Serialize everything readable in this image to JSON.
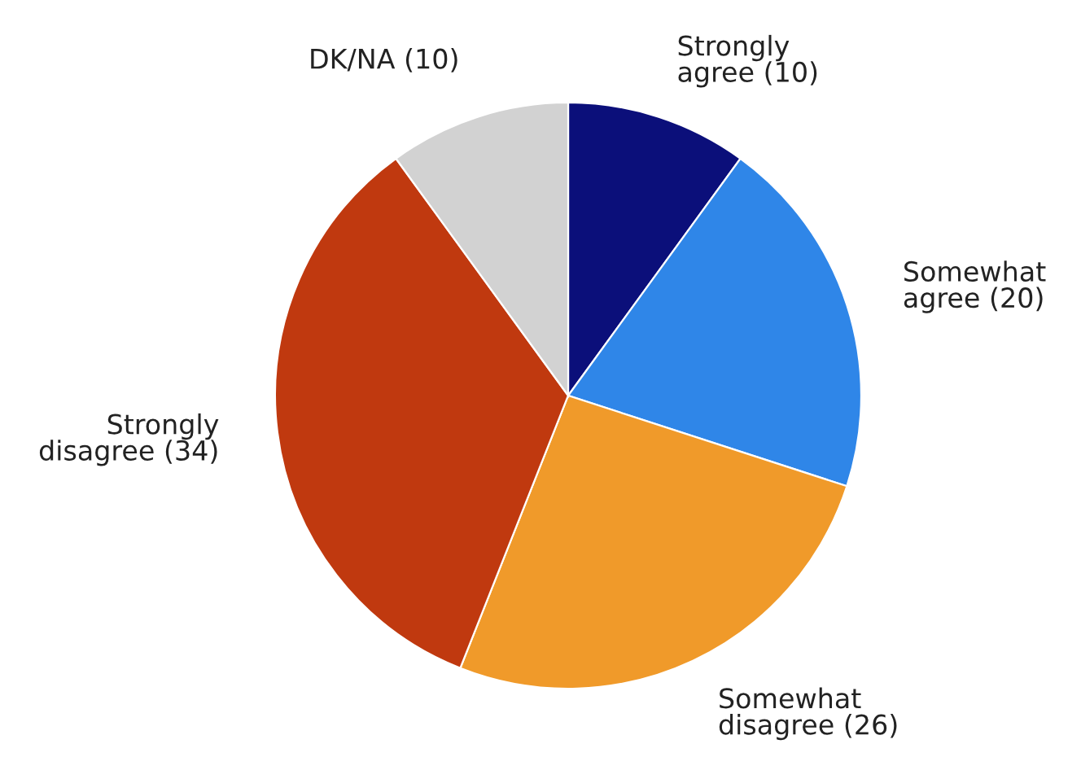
{
  "chart_data": {
    "type": "pie",
    "categories": [
      "Strongly\nagree (10)",
      "Somewhat\nagree (20)",
      "Somewhat\ndisagree (26)",
      "Strongly\ndisagree (34)",
      "DK/NA (10)"
    ],
    "values": [
      10,
      20,
      26,
      34,
      10
    ],
    "colors": [
      "#0b0f7a",
      "#2f86e8",
      "#f09a2a",
      "#c0390f",
      "#d2d2d2"
    ],
    "legend": false
  }
}
